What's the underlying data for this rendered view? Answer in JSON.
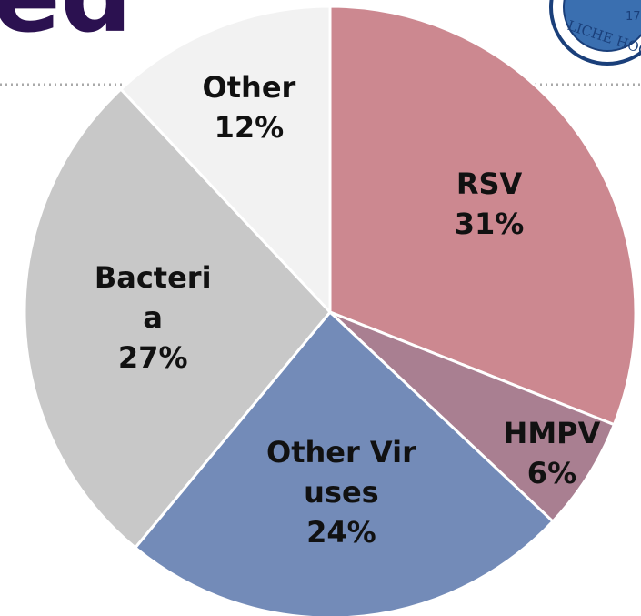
{
  "title": "ed",
  "logo_text": "LICHE HOC",
  "logo_number": "17",
  "chart_data": {
    "type": "pie",
    "categories": [
      "RSV",
      "HMPV",
      "Other Viruses",
      "Bacteria",
      "Other"
    ],
    "values": [
      31,
      6,
      24,
      27,
      12
    ],
    "value_labels": [
      "31%",
      "6%",
      "24%",
      "27%",
      "12%"
    ],
    "colors": [
      "#cc8890",
      "#a97f91",
      "#738bb8",
      "#c8c8c8",
      "#f2f2f2"
    ]
  }
}
